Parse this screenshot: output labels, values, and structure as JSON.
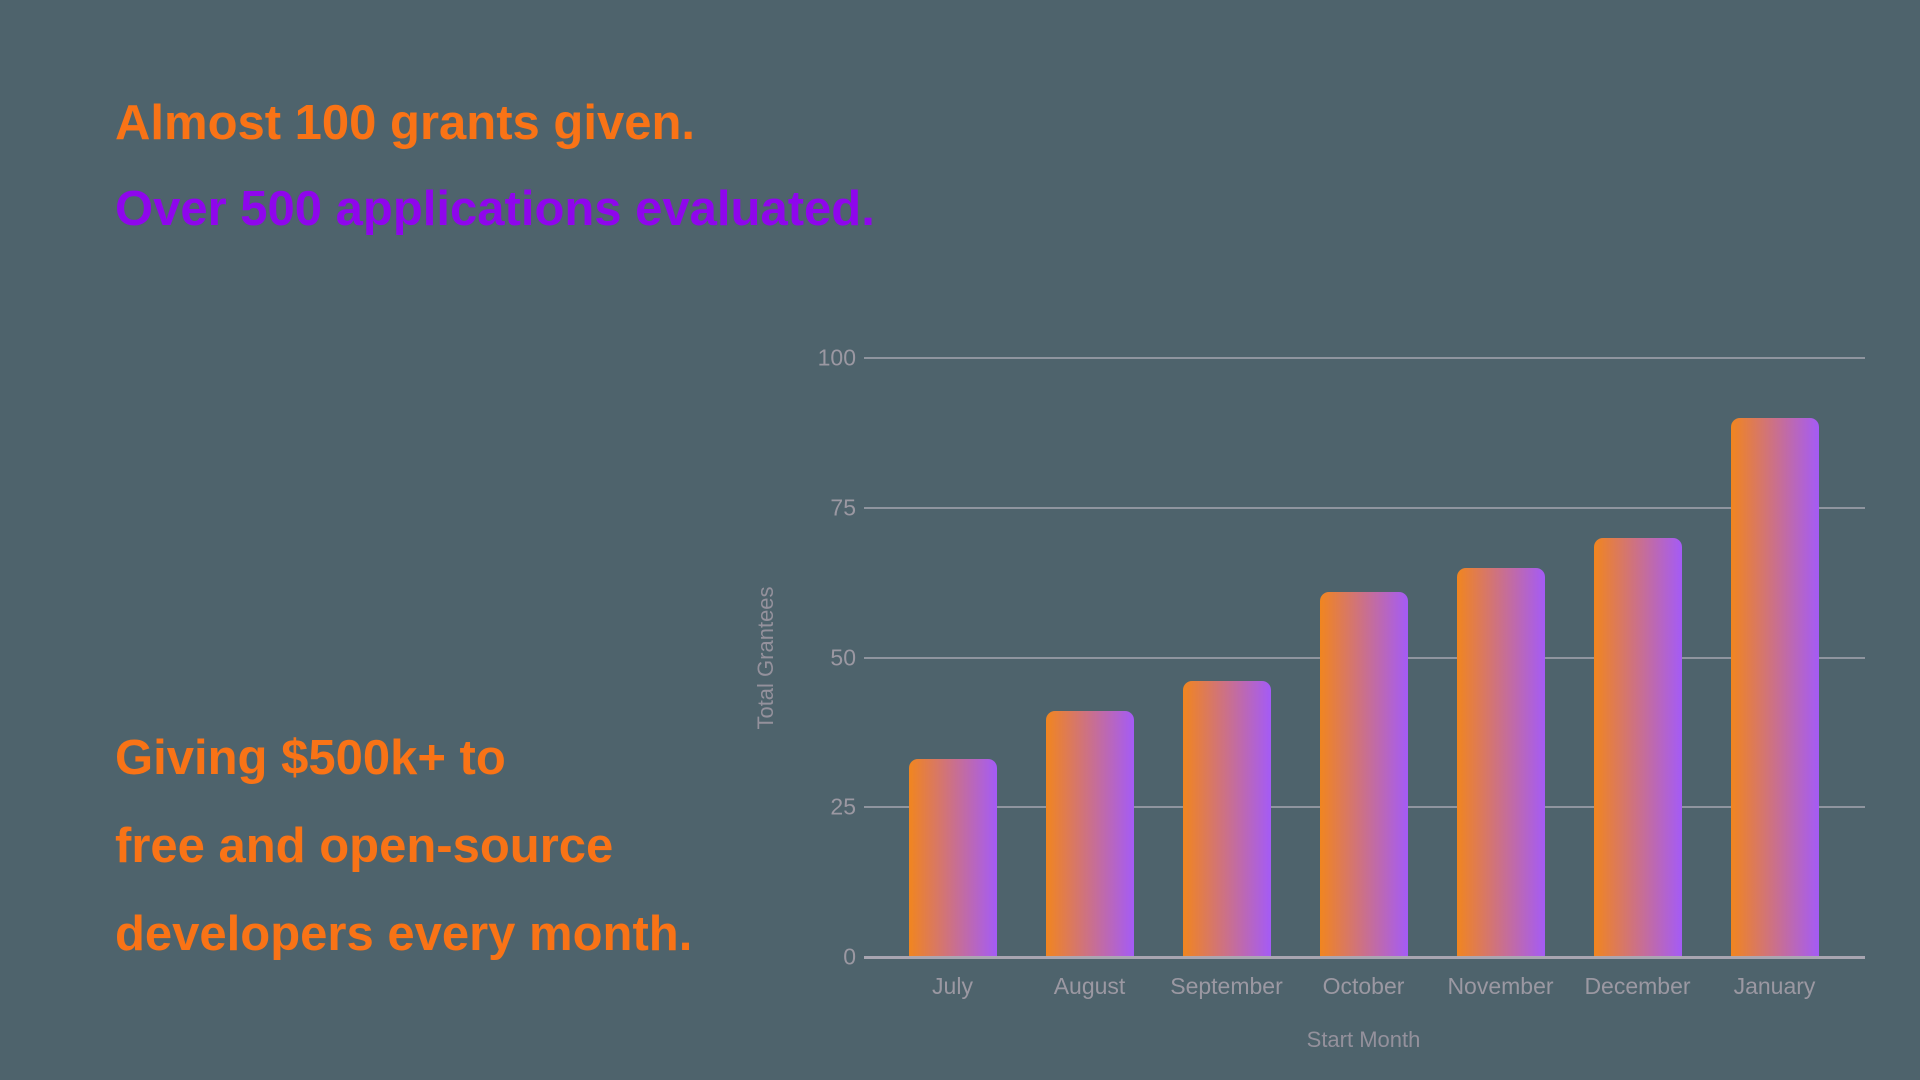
{
  "page": {
    "background_color": "#4E636C"
  },
  "headline": {
    "line1": "Almost 100 grants given.",
    "line2": "Over 500 applications evaluated.",
    "line1_color": "#F97316",
    "line2_color": "#8F06EC"
  },
  "subheadline": {
    "line1": "Giving $500k+ to",
    "line2": "free and open-source",
    "line3": "developers every month.",
    "color": "#F97316"
  },
  "chart_data": {
    "type": "bar",
    "categories": [
      "July",
      "August",
      "September",
      "October",
      "November",
      "December",
      "January"
    ],
    "values": [
      33,
      41,
      46,
      61,
      65,
      70,
      90
    ],
    "title": "",
    "xlabel": "Start Month",
    "ylabel": "Total Grantees",
    "ylim": [
      0,
      100
    ],
    "yticks": [
      0,
      25,
      50,
      75,
      100
    ],
    "grid": true,
    "legend": false,
    "bar_gradient_start": "#F1851F",
    "bar_gradient_end": "#A45BF6",
    "axis_tick_text_color": "#9B98A2",
    "axis_title_text_color": "#94919C",
    "gridline_color": "rgba(196,191,203,0.55)"
  }
}
